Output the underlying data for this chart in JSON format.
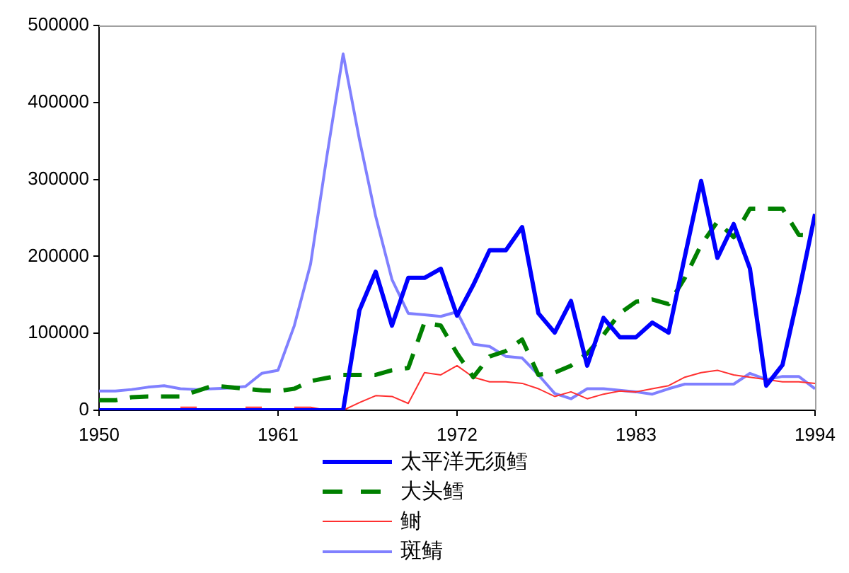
{
  "chart_data": {
    "type": "line",
    "x": [
      1950,
      1951,
      1952,
      1953,
      1954,
      1955,
      1956,
      1957,
      1958,
      1959,
      1960,
      1961,
      1962,
      1963,
      1964,
      1965,
      1966,
      1967,
      1968,
      1969,
      1970,
      1971,
      1972,
      1973,
      1974,
      1975,
      1976,
      1977,
      1978,
      1979,
      1980,
      1981,
      1982,
      1983,
      1984,
      1985,
      1986,
      1987,
      1988,
      1989,
      1990,
      1991,
      1992,
      1993,
      1994
    ],
    "series": [
      {
        "name": "太平洋无须鳕",
        "color": "#0000ff",
        "line_style": "solid",
        "values": [
          0,
          0,
          0,
          0,
          0,
          0,
          0,
          0,
          0,
          0,
          0,
          0,
          0,
          0,
          0,
          0,
          130000,
          180000,
          110000,
          172000,
          172000,
          184000,
          123000,
          163000,
          208000,
          208000,
          238000,
          126000,
          101000,
          142000,
          58000,
          120000,
          95000,
          95000,
          114000,
          101000,
          200000,
          298000,
          198000,
          242000,
          184000,
          32000,
          59000,
          153000,
          255000
        ]
      },
      {
        "name": "大头鳕",
        "color": "#008000",
        "line_style": "dashed",
        "values": [
          13000,
          13000,
          17000,
          18000,
          18000,
          18000,
          25000,
          32000,
          30000,
          28000,
          26000,
          25000,
          28000,
          38000,
          42000,
          46000,
          46000,
          46000,
          52000,
          55000,
          114000,
          110000,
          74000,
          43000,
          70000,
          77000,
          92000,
          46000,
          49000,
          58000,
          74000,
          98000,
          126000,
          141000,
          144000,
          138000,
          172000,
          215000,
          245000,
          225000,
          262000,
          262000,
          262000,
          228000,
          227000
        ]
      },
      {
        "name": "鲥",
        "color": "#ff3030",
        "line_style": "solid",
        "values": [
          null,
          null,
          null,
          null,
          null,
          4000,
          4000,
          null,
          null,
          4000,
          4000,
          null,
          4000,
          4000,
          0,
          0,
          10000,
          19000,
          18000,
          9000,
          49000,
          46000,
          58000,
          43000,
          37000,
          37000,
          35000,
          28000,
          18000,
          24000,
          15000,
          21000,
          25000,
          24000,
          28000,
          32000,
          43000,
          49000,
          52000,
          46000,
          43000,
          40000,
          37000,
          37000,
          35000
        ]
      },
      {
        "name": "斑鲭",
        "color": "#8080ff",
        "line_style": "solid",
        "values": [
          25000,
          25000,
          27000,
          30000,
          32000,
          28000,
          27000,
          28000,
          29000,
          31000,
          48000,
          52000,
          110000,
          190000,
          330000,
          463000,
          352000,
          252000,
          170000,
          126000,
          124000,
          122000,
          128000,
          86000,
          83000,
          70000,
          68000,
          46000,
          22000,
          15000,
          28000,
          28000,
          26000,
          24000,
          21000,
          28000,
          34000,
          34000,
          34000,
          34000,
          48000,
          40000,
          44000,
          44000,
          28000
        ]
      }
    ],
    "xlim": [
      1950,
      1994
    ],
    "xticks": [
      1950,
      1961,
      1972,
      1983,
      1994
    ],
    "ylim": [
      0,
      500000
    ],
    "yticks": [
      0,
      100000,
      200000,
      300000,
      400000,
      500000
    ],
    "grid": false,
    "legend": "bottom"
  }
}
